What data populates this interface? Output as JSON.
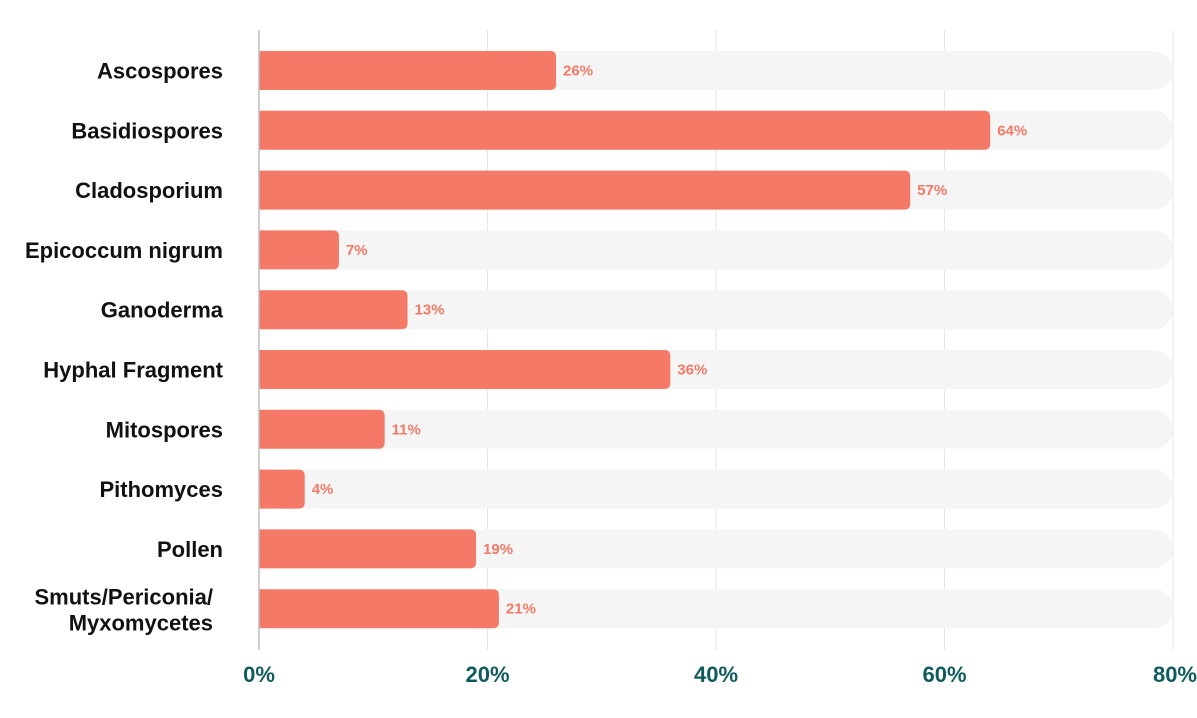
{
  "chart_data": {
    "type": "bar",
    "orientation": "horizontal",
    "categories": [
      "Ascospores",
      "Basidiospores",
      "Cladosporium",
      "Epicoccum nigrum",
      "Ganoderma",
      "Hyphal Fragment",
      "Mitospores",
      "Pithomyces",
      "Pollen",
      "Smuts/Periconia/ Myxomycetes"
    ],
    "values": [
      26,
      64,
      57,
      7,
      13,
      36,
      11,
      4,
      19,
      21
    ],
    "data_labels": [
      "26%",
      "64%",
      "57%",
      "7%",
      "13%",
      "36%",
      "11%",
      "4%",
      "19%",
      "21%"
    ],
    "xlim": [
      0,
      80
    ],
    "x_ticks": [
      0,
      20,
      40,
      60,
      80
    ],
    "x_tick_labels": [
      "0%",
      "20%",
      "40%",
      "60%",
      "80%"
    ],
    "grid": true,
    "background_track": true,
    "colors": {
      "bar": "#f47a67",
      "track": "#f5f5f5",
      "grid": "#e6e6e6",
      "axis": "#bdbdbd",
      "tick_text": "#0f5b5b",
      "category_text": "#111111",
      "data_label": "#f47a67"
    }
  }
}
